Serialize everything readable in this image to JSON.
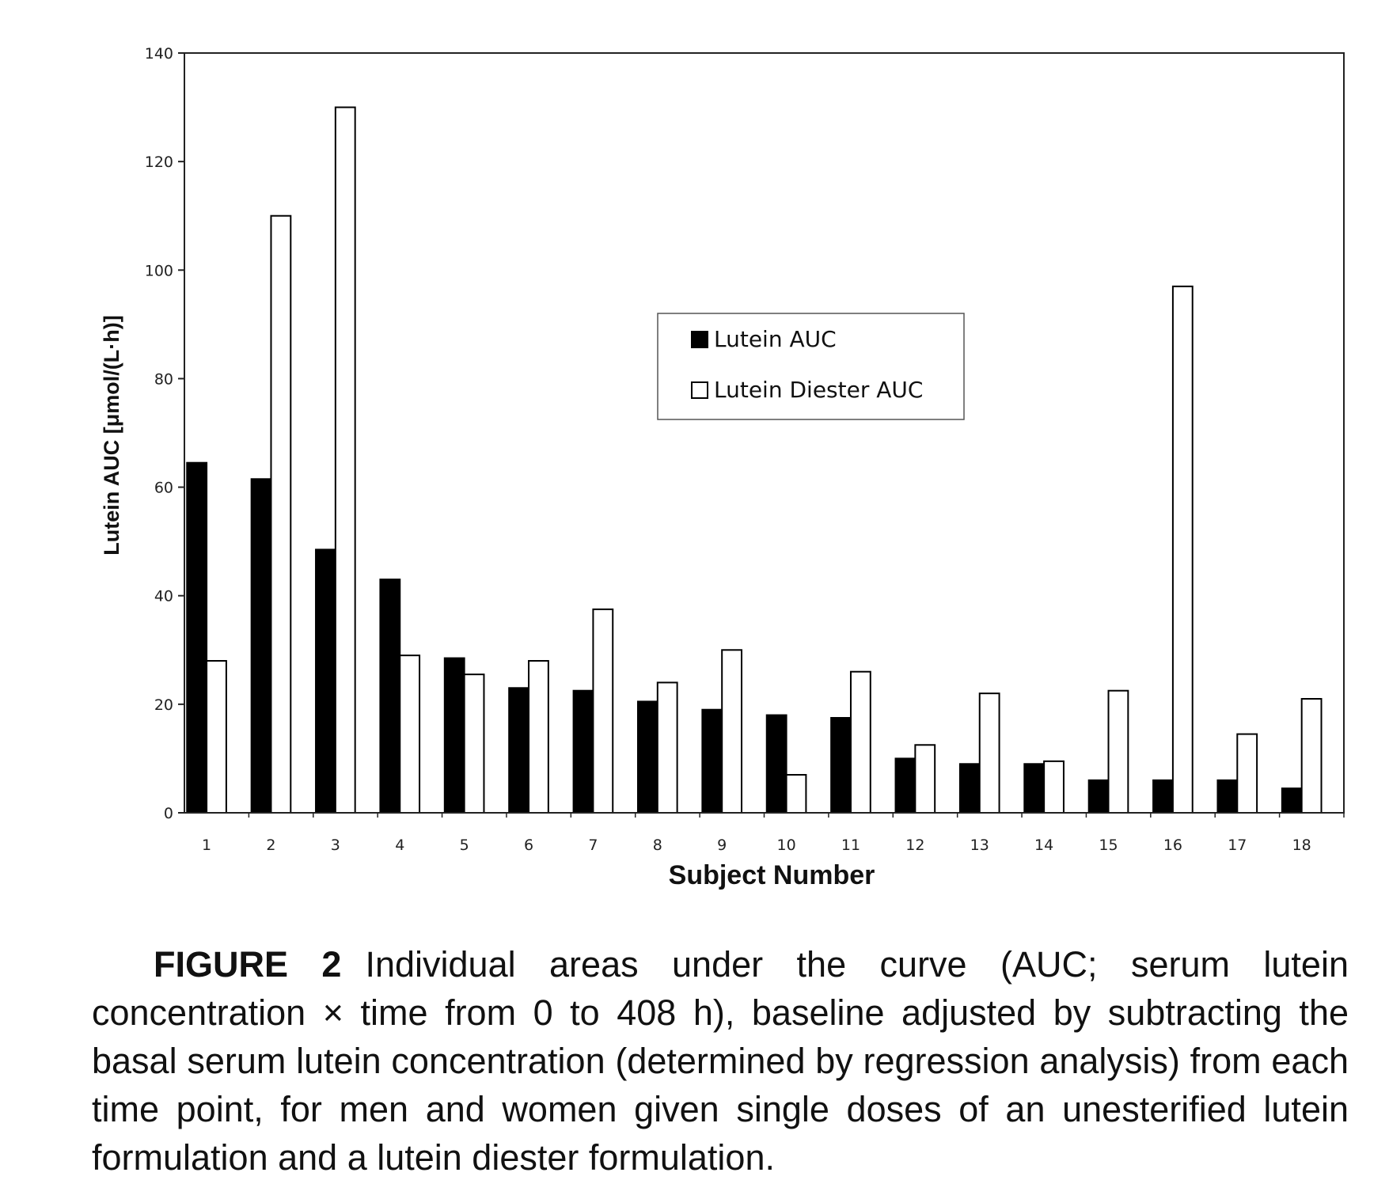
{
  "chart_data": {
    "type": "bar",
    "categories": [
      "1",
      "2",
      "3",
      "4",
      "5",
      "6",
      "7",
      "8",
      "9",
      "10",
      "11",
      "12",
      "13",
      "14",
      "15",
      "16",
      "17",
      "18"
    ],
    "series": [
      {
        "name": "Lutein AUC",
        "color": "#000000",
        "values": [
          64.5,
          61.5,
          48.5,
          43,
          28.5,
          23,
          22.5,
          20.5,
          19,
          18,
          17.5,
          10,
          9,
          9,
          6,
          6,
          6,
          4.5
        ]
      },
      {
        "name": "Lutein Diester AUC",
        "color": "#ffffff",
        "values": [
          28,
          110,
          130,
          29,
          25.5,
          28,
          37.5,
          24,
          30,
          7,
          26,
          12.5,
          22,
          9.5,
          22.5,
          97,
          14.5,
          21
        ]
      }
    ],
    "xlabel": "Subject Number",
    "ylabel": "Lutein AUC [μmol/(L·h)]",
    "ylim": [
      0,
      140
    ],
    "yticks": [
      "0",
      "20",
      "40",
      "60",
      "80",
      "100",
      "120",
      "140"
    ],
    "legend_position": "upper-center",
    "grid": false
  },
  "caption": {
    "label": "FIGURE 2",
    "text": "Individual areas under the curve (AUC; serum lutein concentration × time from 0 to 408 h), baseline adjusted by subtracting the basal serum lutein concentration (determined by regression analysis) from each time point, for men and women given single doses of an unesterified lutein formulation and a lutein diester formulation."
  }
}
